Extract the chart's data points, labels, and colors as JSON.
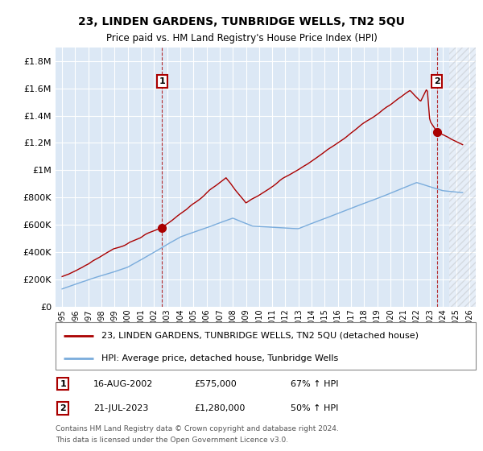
{
  "title": "23, LINDEN GARDENS, TUNBRIDGE WELLS, TN2 5QU",
  "subtitle": "Price paid vs. HM Land Registry's House Price Index (HPI)",
  "legend_line1": "23, LINDEN GARDENS, TUNBRIDGE WELLS, TN2 5QU (detached house)",
  "legend_line2": "HPI: Average price, detached house, Tunbridge Wells",
  "annotation1_label": "1",
  "annotation1_date": "16-AUG-2002",
  "annotation1_price": "£575,000",
  "annotation1_hpi": "67% ↑ HPI",
  "annotation2_label": "2",
  "annotation2_date": "21-JUL-2023",
  "annotation2_price": "£1,280,000",
  "annotation2_hpi": "50% ↑ HPI",
  "footer1": "Contains HM Land Registry data © Crown copyright and database right 2024.",
  "footer2": "This data is licensed under the Open Government Licence v3.0.",
  "point1_x": 2002.62,
  "point1_y": 575000,
  "point2_x": 2023.54,
  "point2_y": 1280000,
  "red_color": "#aa0000",
  "blue_color": "#7aacdc",
  "bg_color": "#dce8f5",
  "grid_color": "#ffffff",
  "xlim": [
    1994.5,
    2026.5
  ],
  "ylim": [
    0,
    1900000
  ],
  "yticks": [
    0,
    200000,
    400000,
    600000,
    800000,
    1000000,
    1200000,
    1400000,
    1600000,
    1800000
  ],
  "hatch_start": 2024.5
}
